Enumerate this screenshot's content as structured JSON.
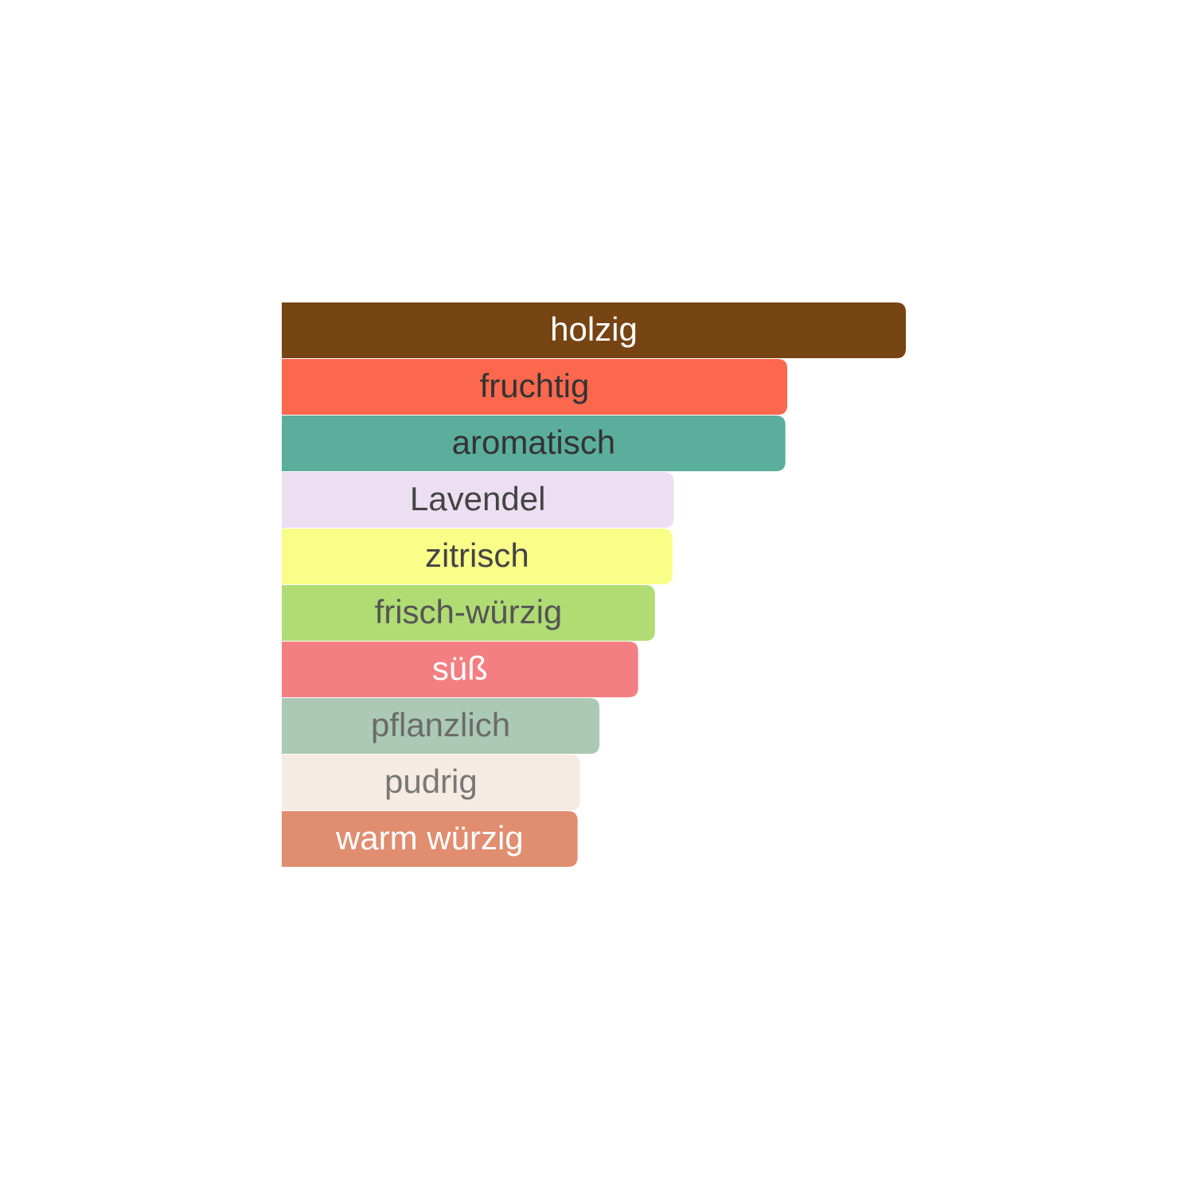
{
  "chart_data": {
    "type": "hbar",
    "categories": [
      "holzig",
      "fruchtig",
      "aromatisch",
      "Lavendel",
      "zitrisch",
      "frisch-würzig",
      "süß",
      "pflanzlich",
      "pudrig",
      "warm würzig"
    ],
    "values": [
      100,
      81,
      80.7,
      62.8,
      62.6,
      59.8,
      57.1,
      50.9,
      47.8,
      47.4
    ],
    "xlim": [
      0,
      100
    ],
    "colors": [
      "#774414",
      "#fc684e",
      "#5bae9b",
      "#ecdff2",
      "#f9fe88",
      "#b0dc73",
      "#f47f82",
      "#abc9b5",
      "#f5ebe3",
      "#e08d70"
    ],
    "label_colors": [
      "#ffffff",
      "#333333",
      "#333333",
      "#444444",
      "#444444",
      "#555555",
      "#ffffff",
      "#6b6b6b",
      "#777777",
      "#ffffff"
    ]
  }
}
